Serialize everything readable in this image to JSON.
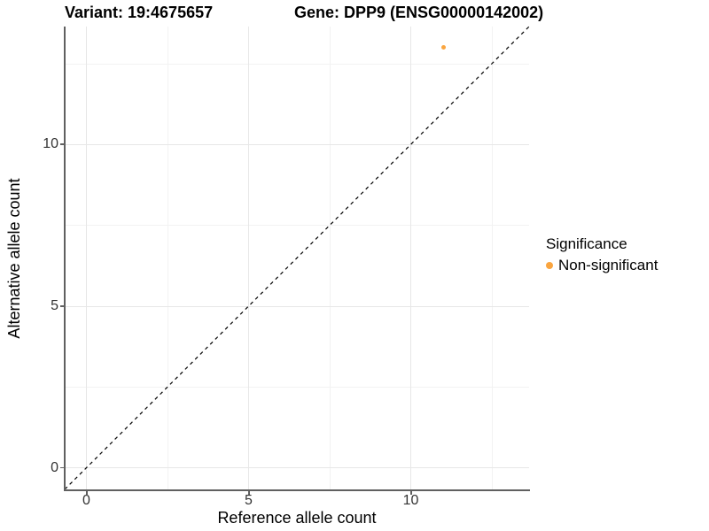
{
  "chart_data": {
    "type": "scatter",
    "title_left": "Variant: 19:4675657",
    "title_right": "Gene: DPP9 (ENSG00000142002)",
    "xlabel": "Reference allele count",
    "ylabel": "Alternative allele count",
    "x_ticks": [
      0,
      5,
      10
    ],
    "y_ticks": [
      0,
      5,
      10
    ],
    "x_tick_labels": [
      "0",
      "5",
      "10"
    ],
    "y_tick_labels": [
      "0",
      "5",
      "10"
    ],
    "xlim": [
      -0.67,
      13.65
    ],
    "ylim": [
      -0.67,
      13.65
    ],
    "grid": "major at 0/5/10 and minor at 2.5/7.5/12.5, light gray, white panel background",
    "points": [
      {
        "x": 11,
        "y": 13,
        "series": "Non-significant",
        "color": "#FAA53F"
      }
    ],
    "reference_line": {
      "kind": "identity y = x",
      "style": "dashed",
      "color": "#000000"
    },
    "legend": {
      "position": "right",
      "title": "Significance",
      "entries": [
        {
          "label": "Non-significant",
          "color": "#FAA53F",
          "marker": "circle"
        }
      ]
    }
  },
  "colors": {
    "point": "#FAA53F",
    "axis_line": "#606060",
    "tick_text": "#333333",
    "grid_major": "#e7e7e7",
    "grid_minor": "#f2f2f2",
    "background": "#ffffff"
  }
}
